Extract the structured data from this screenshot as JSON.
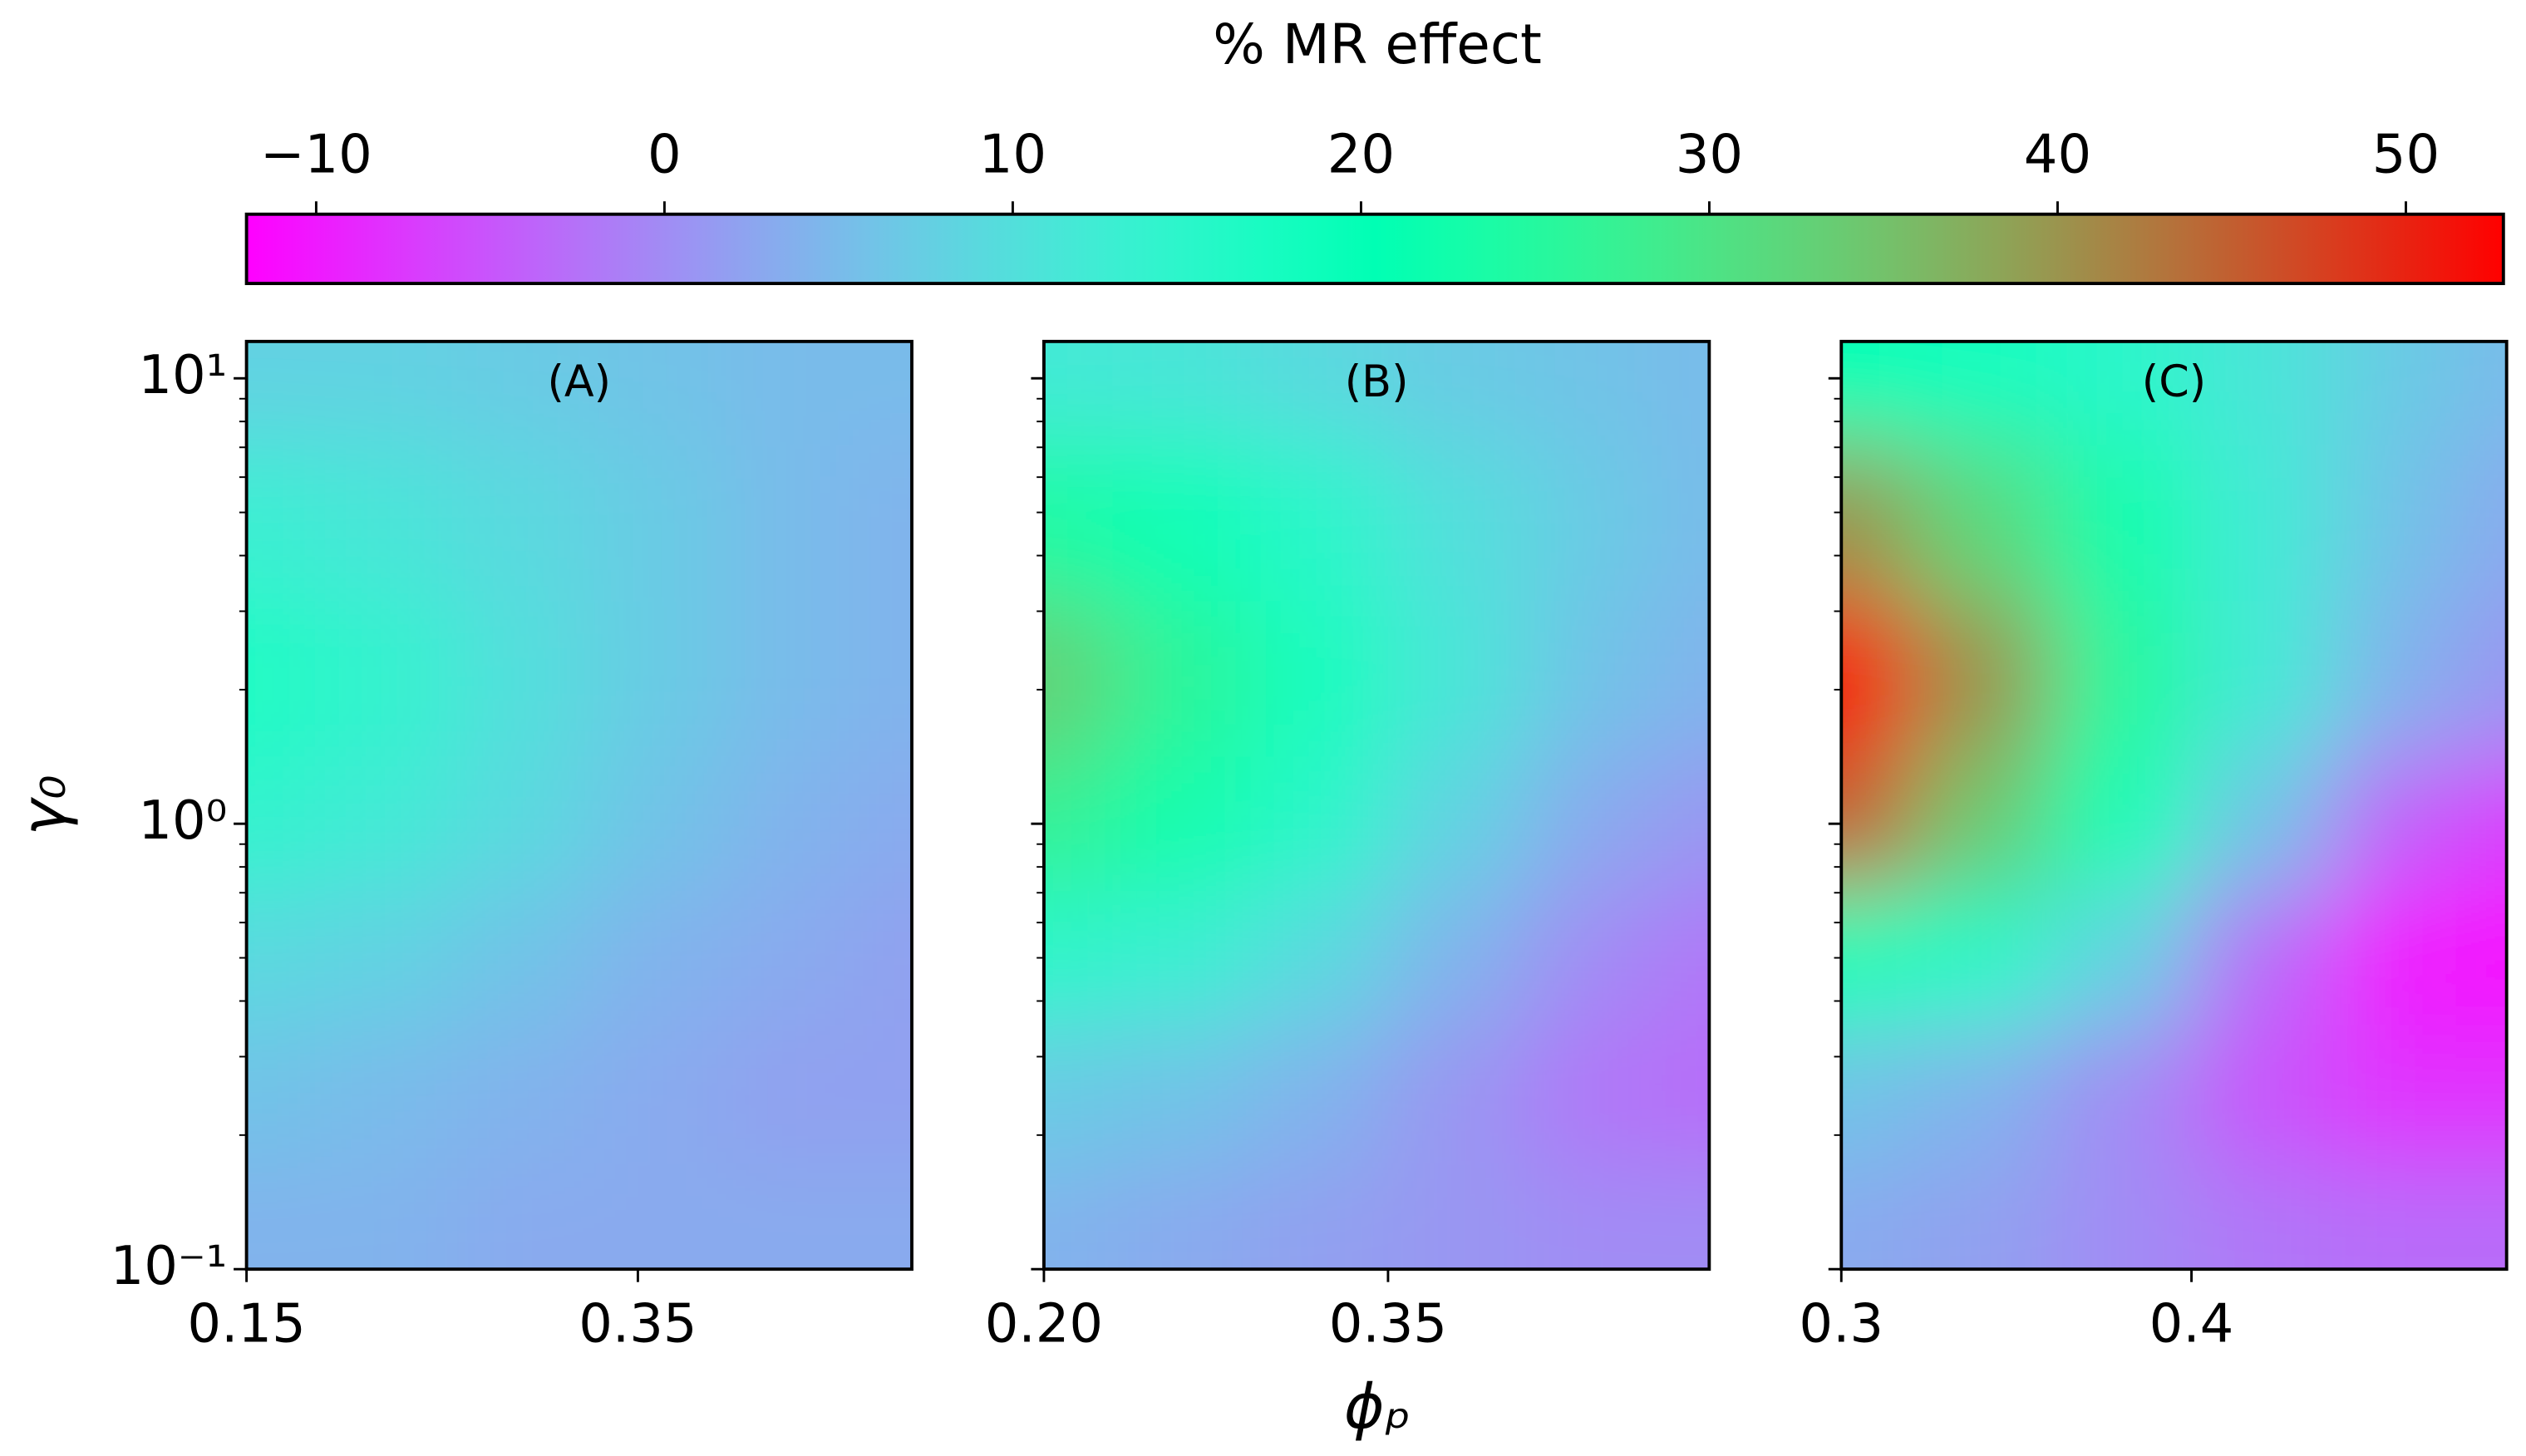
{
  "chart_data": {
    "type": "heatmap",
    "cmap": "rainbow",
    "log_y": true,
    "colorbar": {
      "label": "% MR effect",
      "lim": [
        -12,
        52.8
      ],
      "ticks": [
        {
          "value": -10,
          "label": "−10"
        },
        0,
        10,
        20,
        30,
        40,
        50
      ]
    },
    "xlabel": "ϕₚ",
    "ylabel": "γ₀",
    "ylim": [
      0.1,
      12.1
    ],
    "yticks": [
      {
        "value": 0.1,
        "label": "10⁻¹"
      },
      {
        "value": 1,
        "label": "10⁰"
      },
      {
        "value": 10,
        "label": "10¹"
      }
    ],
    "yminorticks": [
      0.2,
      0.3,
      0.4,
      0.5,
      0.6,
      0.7,
      0.8,
      0.9,
      2,
      3,
      4,
      5,
      6,
      7,
      8,
      9
    ],
    "y": [
      10,
      5,
      2,
      1,
      0.5,
      0.25,
      0.12
    ],
    "panels": [
      {
        "title": "(A)",
        "xlim": [
          0.15,
          0.49
        ],
        "xticks": [
          0.15,
          0.35
        ],
        "x": [
          0.15,
          0.22,
          0.29,
          0.36,
          0.43,
          0.49
        ],
        "z": [
          [
            8,
            8,
            7,
            6,
            5,
            5
          ],
          [
            13,
            11,
            9,
            7,
            5,
            4
          ],
          [
            17,
            14,
            10,
            7,
            5,
            4
          ],
          [
            14,
            12,
            9,
            6,
            4,
            3
          ],
          [
            9,
            8,
            6,
            4,
            3,
            2
          ],
          [
            6,
            5,
            4,
            3,
            2,
            2
          ],
          [
            4,
            4,
            3,
            3,
            3,
            3
          ]
        ]
      },
      {
        "title": "(B)",
        "xlim": [
          0.2,
          0.49
        ],
        "xticks": [
          {
            "value": 0.2,
            "label": "0.20"
          },
          0.35
        ],
        "x": [
          0.2,
          0.26,
          0.32,
          0.38,
          0.44,
          0.49
        ],
        "z": [
          [
            12,
            11,
            9,
            7,
            6,
            5
          ],
          [
            24,
            20,
            15,
            10,
            7,
            5
          ],
          [
            33,
            26,
            18,
            11,
            6,
            4
          ],
          [
            27,
            22,
            15,
            8,
            3,
            1
          ],
          [
            15,
            13,
            9,
            4,
            0,
            -2
          ],
          [
            7,
            6,
            4,
            1,
            -2,
            -3
          ],
          [
            4,
            3,
            2,
            1,
            0,
            0
          ]
        ]
      },
      {
        "title": "(C)",
        "xlim": [
          0.3,
          0.49
        ],
        "xticks": [
          0.3,
          0.4
        ],
        "x": [
          0.3,
          0.34,
          0.38,
          0.42,
          0.46,
          0.49
        ],
        "z": [
          [
            20,
            18,
            15,
            11,
            7,
            5
          ],
          [
            40,
            32,
            22,
            12,
            6,
            3
          ],
          [
            52,
            40,
            25,
            12,
            4,
            1
          ],
          [
            45,
            34,
            20,
            6,
            -4,
            -7
          ],
          [
            20,
            16,
            8,
            -3,
            -10,
            -11
          ],
          [
            6,
            4,
            0,
            -5,
            -8,
            -8
          ],
          [
            3,
            2,
            0,
            -2,
            -3,
            -3
          ]
        ]
      }
    ]
  }
}
